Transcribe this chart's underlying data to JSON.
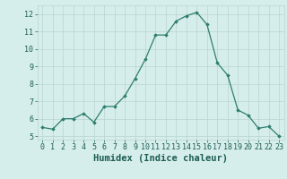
{
  "x": [
    0,
    1,
    2,
    3,
    4,
    5,
    6,
    7,
    8,
    9,
    10,
    11,
    12,
    13,
    14,
    15,
    16,
    17,
    18,
    19,
    20,
    21,
    22,
    23
  ],
  "y": [
    5.5,
    5.4,
    6.0,
    6.0,
    6.3,
    5.8,
    6.7,
    6.7,
    7.3,
    8.3,
    9.4,
    10.8,
    10.8,
    11.6,
    11.9,
    12.1,
    11.4,
    9.2,
    8.5,
    6.5,
    6.2,
    5.45,
    5.55,
    5.0
  ],
  "line_color": "#2e7d6e",
  "marker": "D",
  "marker_size": 1.8,
  "linewidth": 0.9,
  "xlabel": "Humidex (Indice chaleur)",
  "xlim": [
    -0.5,
    23.5
  ],
  "ylim": [
    4.8,
    12.5
  ],
  "yticks": [
    5,
    6,
    7,
    8,
    9,
    10,
    11,
    12
  ],
  "xticks": [
    0,
    1,
    2,
    3,
    4,
    5,
    6,
    7,
    8,
    9,
    10,
    11,
    12,
    13,
    14,
    15,
    16,
    17,
    18,
    19,
    20,
    21,
    22,
    23
  ],
  "background_color": "#d6eeeb",
  "grid_color": "#b8d4d0",
  "axis_label_fontsize": 7.5,
  "tick_fontsize": 6.0
}
